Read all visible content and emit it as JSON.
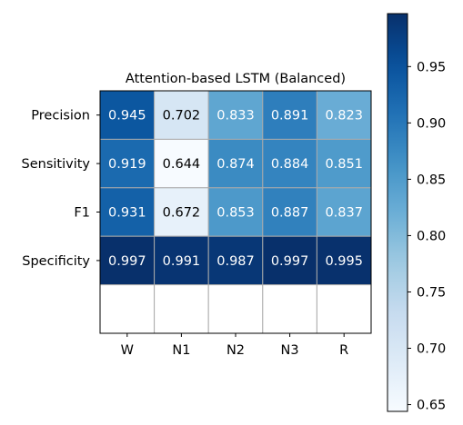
{
  "chart_data": {
    "type": "heatmap",
    "title": "Attention-based LSTM (Balanced)",
    "xlabel": "",
    "ylabel": "",
    "x_categories": [
      "W",
      "N1",
      "N2",
      "N3",
      "R"
    ],
    "y_categories": [
      "Precision",
      "Sensitivity",
      "F1",
      "Specificity"
    ],
    "values": [
      [
        0.945,
        0.702,
        0.833,
        0.891,
        0.823
      ],
      [
        0.919,
        0.644,
        0.874,
        0.884,
        0.851
      ],
      [
        0.931,
        0.672,
        0.853,
        0.887,
        0.837
      ],
      [
        0.997,
        0.991,
        0.987,
        0.997,
        0.995
      ]
    ],
    "cell_labels": [
      [
        "0.945",
        "0.702",
        "0.833",
        "0.891",
        "0.823"
      ],
      [
        "0.919",
        "0.644",
        "0.874",
        "0.884",
        "0.851"
      ],
      [
        "0.931",
        "0.672",
        "0.853",
        "0.887",
        "0.837"
      ],
      [
        "0.997",
        "0.991",
        "0.987",
        "0.997",
        "0.995"
      ]
    ],
    "empty_rows_below": 1,
    "colormap": "Blues",
    "colorbar": {
      "range": [
        0.644,
        0.997
      ],
      "ticks": [
        0.65,
        0.7,
        0.75,
        0.8,
        0.85,
        0.9,
        0.95
      ],
      "tick_labels": [
        "0.65",
        "0.70",
        "0.75",
        "0.80",
        "0.85",
        "0.90",
        "0.95"
      ]
    },
    "grid": true,
    "grid_color": "#aaaaaa"
  }
}
